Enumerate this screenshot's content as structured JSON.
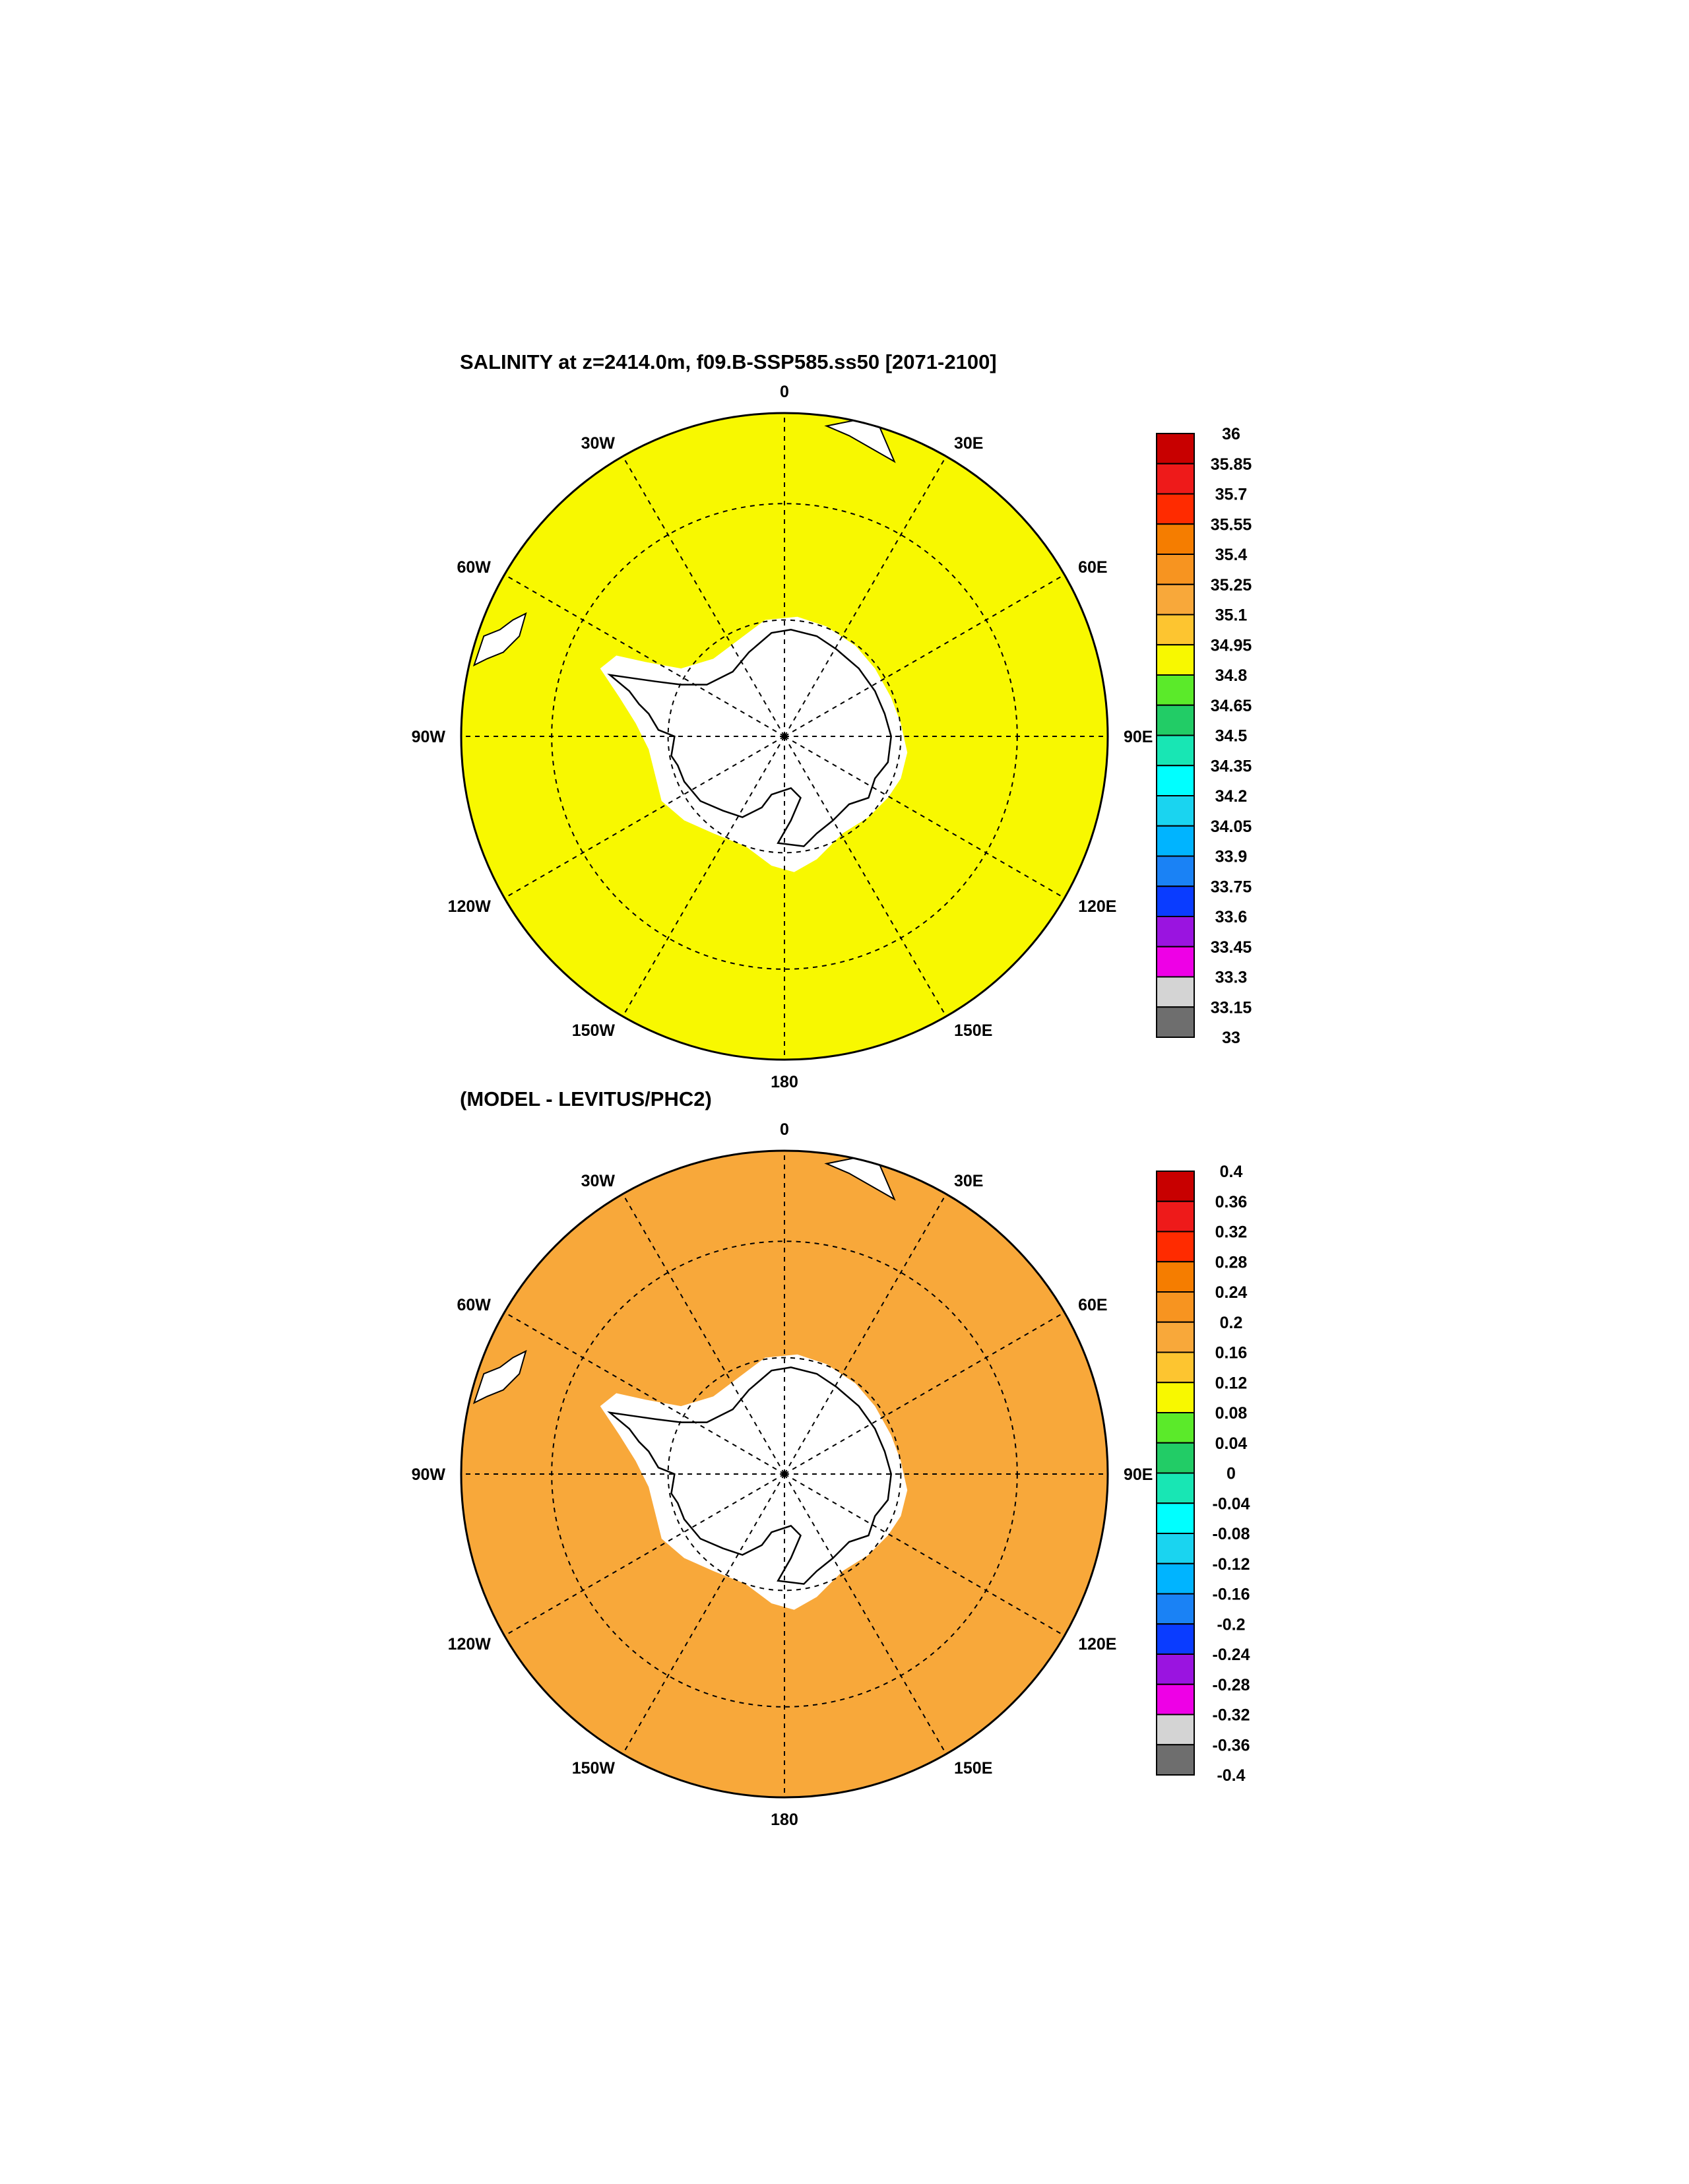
{
  "panels": [
    {
      "title": "SALINITY at z=2414.0m, f09.B-SSP585.ss50 [2071-2100]",
      "field_color": "#f8f800",
      "longitude_labels": [
        "0",
        "30E",
        "60E",
        "90E",
        "120E",
        "150E",
        "180",
        "150W",
        "120W",
        "90W",
        "60W",
        "30W"
      ],
      "colorbar": {
        "labels": [
          "36",
          "35.85",
          "35.7",
          "35.55",
          "35.4",
          "35.25",
          "35.1",
          "34.95",
          "34.8",
          "34.65",
          "34.5",
          "34.35",
          "34.2",
          "34.05",
          "33.9",
          "33.75",
          "33.6",
          "33.45",
          "33.3",
          "33.15",
          "33"
        ],
        "colors": [
          "#c80000",
          "#ee1a1a",
          "#ff2b00",
          "#f57d00",
          "#f79420",
          "#f8a83a",
          "#fdc530",
          "#f8f800",
          "#5bea2a",
          "#22cc66",
          "#18e6b4",
          "#00ffff",
          "#1ad4f0",
          "#00b4ff",
          "#1a82f5",
          "#0a3cff",
          "#9a14e0",
          "#ee00e6",
          "#d4d4d4",
          "#6e6e6e"
        ]
      }
    },
    {
      "title": "(MODEL - LEVITUS/PHC2)",
      "field_color": "#f8a83a",
      "longitude_labels": [
        "0",
        "30E",
        "60E",
        "90E",
        "120E",
        "150E",
        "180",
        "150W",
        "120W",
        "90W",
        "60W",
        "30W"
      ],
      "colorbar": {
        "labels": [
          "0.4",
          "0.36",
          "0.32",
          "0.28",
          "0.24",
          "0.2",
          "0.16",
          "0.12",
          "0.08",
          "0.04",
          "0",
          "-0.04",
          "-0.08",
          "-0.12",
          "-0.16",
          "-0.2",
          "-0.24",
          "-0.28",
          "-0.32",
          "-0.36",
          "-0.4"
        ],
        "colors": [
          "#c80000",
          "#ee1a1a",
          "#ff2b00",
          "#f57d00",
          "#f79420",
          "#f8a83a",
          "#fdc530",
          "#f8f800",
          "#5bea2a",
          "#22cc66",
          "#18e6b4",
          "#00ffff",
          "#1ad4f0",
          "#00b4ff",
          "#1a82f5",
          "#0a3cff",
          "#9a14e0",
          "#ee00e6",
          "#d4d4d4",
          "#6e6e6e"
        ]
      }
    }
  ]
}
